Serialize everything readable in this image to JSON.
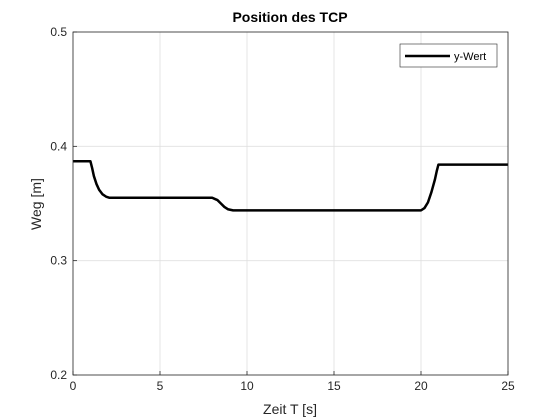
{
  "chart_data": {
    "type": "line",
    "title": "Position des TCP",
    "xlabel": "Zeit T [s]",
    "ylabel": "Weg [m]",
    "xlim": [
      0,
      25
    ],
    "ylim": [
      0.2,
      0.5
    ],
    "x_ticks": [
      0,
      5,
      10,
      15,
      20,
      25
    ],
    "x_tick_labels": [
      "0",
      "5",
      "10",
      "15",
      "20",
      "25"
    ],
    "y_ticks": [
      0.2,
      0.3,
      0.4,
      0.5
    ],
    "y_tick_labels": [
      "0.2",
      "0.3",
      "0.4",
      "0.5"
    ],
    "grid": true,
    "legend_position": "top-right",
    "series": [
      {
        "name": "y-Wert",
        "color": "#000000",
        "x": [
          0,
          1.0,
          1.1,
          1.2,
          1.35,
          1.5,
          1.7,
          1.9,
          2.1,
          2.5,
          3,
          5,
          8.0,
          8.15,
          8.3,
          8.5,
          8.7,
          8.9,
          9.2,
          10,
          15,
          20,
          20.2,
          20.4,
          20.6,
          20.8,
          20.9,
          21.0,
          22,
          25
        ],
        "y": [
          0.387,
          0.387,
          0.381,
          0.374,
          0.367,
          0.362,
          0.358,
          0.356,
          0.355,
          0.355,
          0.355,
          0.355,
          0.355,
          0.354,
          0.353,
          0.35,
          0.347,
          0.345,
          0.344,
          0.344,
          0.344,
          0.344,
          0.346,
          0.351,
          0.36,
          0.371,
          0.378,
          0.384,
          0.384,
          0.384
        ]
      }
    ]
  }
}
